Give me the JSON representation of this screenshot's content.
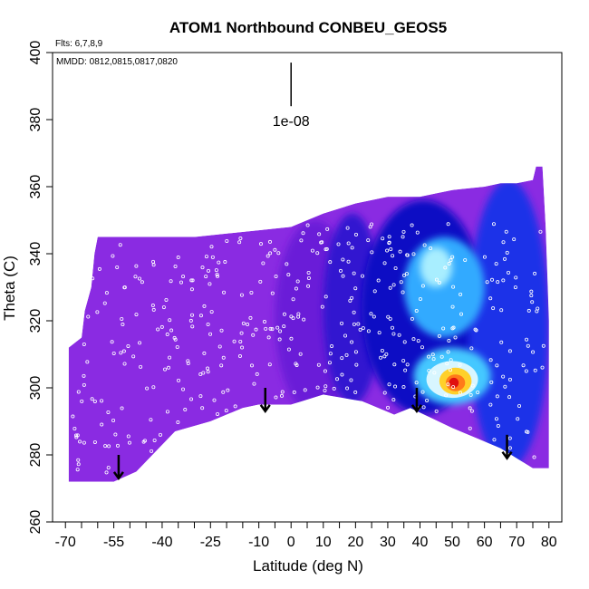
{
  "chart_data": {
    "type": "heatmap",
    "title": "ATOM1 Northbound CONBEU_GEOS5",
    "xlabel": "Latitude (deg N)",
    "ylabel": "Theta (C)",
    "xlim": [
      -70,
      80
    ],
    "ylim": [
      260,
      400
    ],
    "xticks": [
      -70,
      -55,
      -40,
      -25,
      -10,
      0,
      10,
      20,
      30,
      40,
      50,
      60,
      70,
      80
    ],
    "xtick_labels": [
      "-70",
      "-55",
      "-40",
      "-25",
      "-10",
      "0",
      "10",
      "20",
      "30",
      "40",
      "50",
      "60",
      "70",
      "80"
    ],
    "xminor_ticks": [
      -65,
      -60,
      -50,
      -45,
      -35,
      -30,
      -20,
      -15,
      -5,
      5,
      15,
      25,
      35,
      45,
      55,
      65,
      75
    ],
    "yticks": [
      260,
      280,
      300,
      320,
      340,
      360,
      380,
      400
    ],
    "ytick_labels": [
      "260",
      "280",
      "300",
      "320",
      "340",
      "360",
      "380",
      "400"
    ],
    "annotations": {
      "flights": "Flts: 6,7,8,9",
      "dates": "MMDD: 0812,0815,0817,0820",
      "scale_label": "1e-08"
    },
    "scale_bar": {
      "x": 0,
      "y_top": 397,
      "y_bottom": 384
    },
    "arrows": [
      {
        "x": -53.5,
        "y_from": 280,
        "y_to": 273
      },
      {
        "x": -8,
        "y_from": 300,
        "y_to": 293
      },
      {
        "x": 39,
        "y_from": 300,
        "y_to": 293
      },
      {
        "x": 67,
        "y_from": 286,
        "y_to": 279
      }
    ],
    "field_domain": {
      "bottom_boundary": [
        [
          -69,
          272
        ],
        [
          -55,
          272
        ],
        [
          -48,
          275
        ],
        [
          -36,
          287
        ],
        [
          -25,
          290
        ],
        [
          -15,
          294
        ],
        [
          -10,
          295
        ],
        [
          -5,
          295
        ],
        [
          0,
          295
        ],
        [
          10,
          298
        ],
        [
          22,
          296
        ],
        [
          32,
          292
        ],
        [
          37,
          294
        ],
        [
          50,
          288
        ],
        [
          65,
          282
        ],
        [
          75,
          276
        ],
        [
          80,
          276
        ]
      ],
      "top_boundary": [
        [
          -69,
          312
        ],
        [
          -65,
          315
        ],
        [
          -64,
          323
        ],
        [
          -62,
          330
        ],
        [
          -61,
          340
        ],
        [
          -60,
          345
        ],
        [
          -45,
          345
        ],
        [
          -30,
          345
        ],
        [
          -20,
          346
        ],
        [
          -10,
          347
        ],
        [
          0,
          348
        ],
        [
          10,
          352
        ],
        [
          20,
          355
        ],
        [
          30,
          357
        ],
        [
          40,
          357
        ],
        [
          45,
          358
        ],
        [
          50,
          359
        ],
        [
          60,
          360
        ],
        [
          65,
          361
        ],
        [
          70,
          361
        ],
        [
          75,
          362
        ],
        [
          76,
          366
        ],
        [
          78,
          366
        ],
        [
          79,
          348
        ],
        [
          80,
          320
        ],
        [
          80,
          276
        ]
      ]
    },
    "field_regions": [
      {
        "name": "background-purple",
        "color": "#8a2be2"
      },
      {
        "name": "mid-violet",
        "color": "#6a1bd8",
        "lat_range": [
          -5,
          20
        ],
        "theta_range": [
          292,
          350
        ]
      },
      {
        "name": "blue-transition",
        "color": "#3018d0",
        "lat_range": [
          10,
          28
        ],
        "theta_range": [
          295,
          352
        ]
      },
      {
        "name": "deep-blue",
        "color": "#0b0ec4",
        "lat_range": [
          22,
          60
        ],
        "theta_range": [
          292,
          356
        ]
      },
      {
        "name": "blue-north",
        "color": "#1a30e8",
        "lat_range": [
          55,
          80
        ],
        "theta_range": [
          276,
          362
        ]
      },
      {
        "name": "cyan-upper",
        "color": "#33aaff",
        "lat_range": [
          35,
          60
        ],
        "theta_range": [
          315,
          345
        ]
      },
      {
        "name": "light-cyan-upper",
        "color": "#a8eeff",
        "lat_range": [
          40,
          50
        ],
        "theta_range": [
          330,
          342
        ]
      },
      {
        "name": "cyan-lower",
        "color": "#44c8ff",
        "lat_range": [
          38,
          62
        ],
        "theta_range": [
          295,
          312
        ]
      },
      {
        "name": "light-lower",
        "color": "#d8f6ff",
        "lat_range": [
          42,
          58
        ],
        "theta_range": [
          297,
          308
        ]
      },
      {
        "name": "yellow-core",
        "color": "#ffd02a",
        "lat_range": [
          46,
          56
        ],
        "theta_range": [
          298,
          306
        ]
      },
      {
        "name": "orange-core",
        "color": "#ff7a1a",
        "lat_range": [
          48,
          54
        ],
        "theta_range": [
          299,
          304
        ]
      },
      {
        "name": "red-core",
        "color": "#e01010",
        "lat_range": [
          49,
          52
        ],
        "theta_range": [
          300,
          303
        ]
      }
    ],
    "observation_points_count": 420
  }
}
